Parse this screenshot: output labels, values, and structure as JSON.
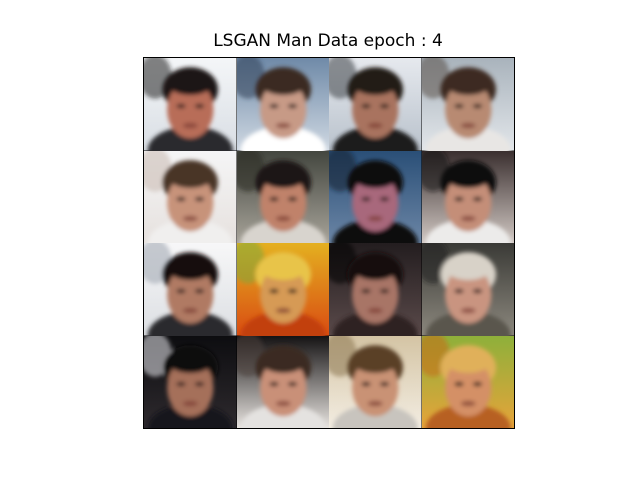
{
  "figure": {
    "title": "LSGAN Man Data epoch : 4"
  },
  "samples": [
    {
      "bg_top": "#f4f6f8",
      "bg_bottom": "#d9dee4",
      "bg_accent": "#1b1b1b",
      "skin": "#b86d58",
      "hair": "#1a1412",
      "shirt": "#2a2a2e"
    },
    {
      "bg_top": "#6f8aa8",
      "bg_bottom": "#cfd8e2",
      "bg_accent": "#2d3f58",
      "skin": "#c79a86",
      "hair": "#3a2a22",
      "shirt": "#ffffff"
    },
    {
      "bg_top": "#e6e9ee",
      "bg_bottom": "#b9c2cc",
      "bg_accent": "#3a3f46",
      "skin": "#a9735e",
      "hair": "#221a18",
      "shirt": "#1b1b1e"
    },
    {
      "bg_top": "#a9b3bc",
      "bg_bottom": "#e2e6ea",
      "bg_accent": "#5a4f48",
      "skin": "#b88a72",
      "hair": "#3d2b22",
      "shirt": "#e8e6e4"
    },
    {
      "bg_top": "#f5f5f6",
      "bg_bottom": "#e6e1de",
      "bg_accent": "#c7b8ae",
      "skin": "#c7937a",
      "hair": "#4a3528",
      "shirt": "#f0efee"
    },
    {
      "bg_top": "#43463f",
      "bg_bottom": "#a8a49a",
      "bg_accent": "#262822",
      "skin": "#c0826a",
      "hair": "#1f1814",
      "shirt": "#d8d4ce"
    },
    {
      "bg_top": "#2a4f77",
      "bg_bottom": "#6c86a6",
      "bg_accent": "#0f1d32",
      "skin": "#a8677c",
      "hair": "#0c0a0c",
      "shirt": "#0b0b10"
    },
    {
      "bg_top": "#3a2f2f",
      "bg_bottom": "#d2c9c4",
      "bg_accent": "#140f10",
      "skin": "#c48e78",
      "hair": "#100c0c",
      "shirt": "#ecebea"
    },
    {
      "bg_top": "#f7f7f8",
      "bg_bottom": "#dcdfe3",
      "bg_accent": "#9aa3ad",
      "skin": "#b07a64",
      "hair": "#15110f",
      "shirt": "#2a2b2f"
    },
    {
      "bg_top": "#e4b020",
      "bg_bottom": "#d94c12",
      "bg_accent": "#7da83a",
      "skin": "#d69a54",
      "hair": "#e8c44a",
      "shirt": "#c2410e"
    },
    {
      "bg_top": "#231d1f",
      "bg_bottom": "#5a4a4a",
      "bg_accent": "#0b0909",
      "skin": "#a87566",
      "hair": "#18110f",
      "shirt": "#2e2424"
    },
    {
      "bg_top": "#3a3a36",
      "bg_bottom": "#8c887e",
      "bg_accent": "#1d1d1b",
      "skin": "#c99480",
      "hair": "#d8d2c8",
      "shirt": "#5a564e"
    },
    {
      "bg_top": "#0d0d10",
      "bg_bottom": "#2e2a2e",
      "bg_accent": "#e8e8ec",
      "skin": "#a56f5a",
      "hair": "#0f0c0c",
      "shirt": "#15151a"
    },
    {
      "bg_top": "#151314",
      "bg_bottom": "#e8e4e0",
      "bg_accent": "#4a3e3a",
      "skin": "#c99078",
      "hair": "#3a2a24",
      "shirt": "#e4e2e0"
    },
    {
      "bg_top": "#d4c4a4",
      "bg_bottom": "#f3ede2",
      "bg_accent": "#8a7450",
      "skin": "#c99274",
      "hair": "#5a4028",
      "shirt": "#c8c4be"
    },
    {
      "bg_top": "#8eb03a",
      "bg_bottom": "#e7a43a",
      "bg_accent": "#c76a1a",
      "skin": "#d49066",
      "hair": "#e0b05a",
      "shirt": "#b76024"
    }
  ]
}
